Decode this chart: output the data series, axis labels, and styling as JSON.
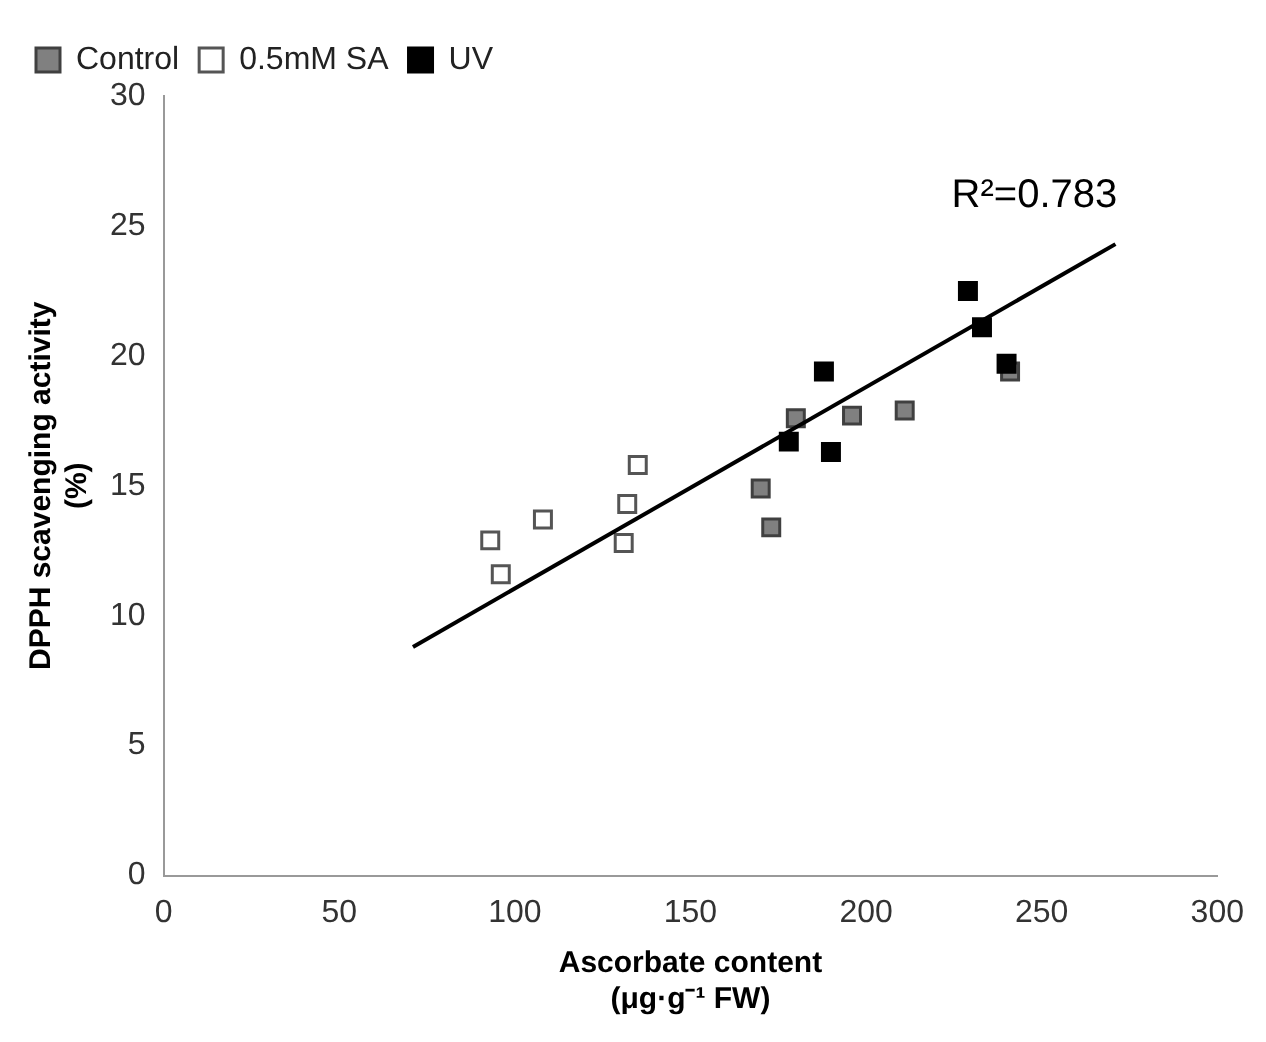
{
  "chart_data": {
    "type": "scatter",
    "xlabel": "Ascorbate content\n(μg·g⁻¹ FW)",
    "ylabel": "DPPH scavenging activity\n(%)",
    "xlim": [
      0,
      300
    ],
    "xticks": [
      0,
      50,
      100,
      150,
      200,
      250,
      300
    ],
    "ylim": [
      0,
      30
    ],
    "yticks": [
      0,
      5,
      10,
      15,
      20,
      25,
      30
    ],
    "grid": false,
    "legend": "top left",
    "marker": "square",
    "annotations": [
      "R²=0.783"
    ],
    "series": [
      {
        "name": "Control",
        "color": "#808080",
        "x": [
          170,
          173,
          180,
          196,
          211,
          241
        ],
        "values": [
          14.9,
          13.4,
          17.6,
          17.7,
          17.9,
          19.4
        ]
      },
      {
        "name": "0.5mM SA",
        "color": "#ffffff",
        "x": [
          93,
          96,
          108,
          131,
          132,
          135
        ],
        "values": [
          12.9,
          11.6,
          13.7,
          12.8,
          14.3,
          15.8
        ]
      },
      {
        "name": "UV",
        "color": "#000000",
        "x": [
          178,
          188,
          190,
          229,
          233,
          240
        ],
        "values": [
          16.7,
          19.4,
          16.3,
          22.5,
          21.1,
          19.7
        ]
      },
      {
        "type": "line",
        "color": "#000000",
        "x": [
          71,
          271
        ],
        "values": [
          8.8,
          24.3
        ],
        "marker": "none",
        "line_style": "solid"
      }
    ]
  }
}
